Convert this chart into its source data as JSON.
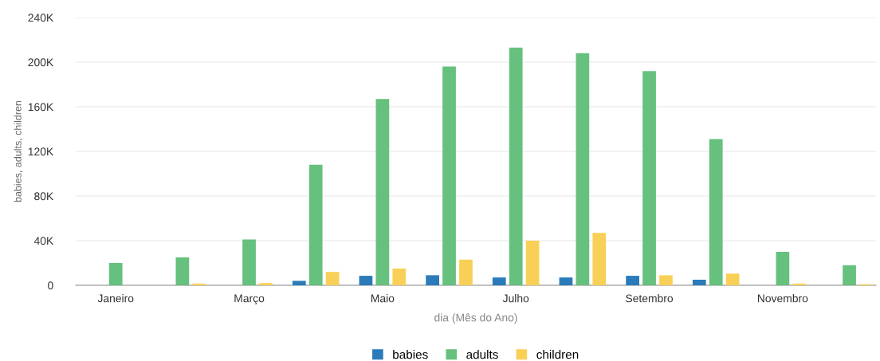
{
  "chart_data": {
    "type": "bar",
    "xlabel": "dia (Mês do Ano)",
    "ylabel": "babies, adults, children",
    "categories": [
      "Janeiro",
      null,
      "Março",
      null,
      "Maio",
      null,
      "Julho",
      null,
      "Setembro",
      null,
      "Novembro",
      null
    ],
    "series": [
      {
        "name": "babies",
        "color": "#2b7bba",
        "values": [
          0,
          0,
          0,
          4000,
          8500,
          9000,
          7000,
          7000,
          8500,
          5000,
          0,
          0
        ]
      },
      {
        "name": "adults",
        "color": "#66c07e",
        "values": [
          20000,
          25000,
          41000,
          108000,
          167000,
          196000,
          213000,
          208000,
          192000,
          131000,
          30000,
          18000
        ]
      },
      {
        "name": "children",
        "color": "#f9d057",
        "values": [
          0,
          1500,
          2000,
          12000,
          15000,
          23000,
          40000,
          47000,
          9000,
          10500,
          1500,
          1000
        ]
      }
    ],
    "ylim": [
      0,
      240000
    ],
    "yticks": [
      {
        "value": 0,
        "label": "0"
      },
      {
        "value": 40000,
        "label": "40K"
      },
      {
        "value": 80000,
        "label": "80K"
      },
      {
        "value": 120000,
        "label": "120K"
      },
      {
        "value": 160000,
        "label": "160K"
      },
      {
        "value": 200000,
        "label": "200K"
      },
      {
        "value": 240000,
        "label": "240K"
      }
    ],
    "grid": "y",
    "legend": "bottom"
  }
}
